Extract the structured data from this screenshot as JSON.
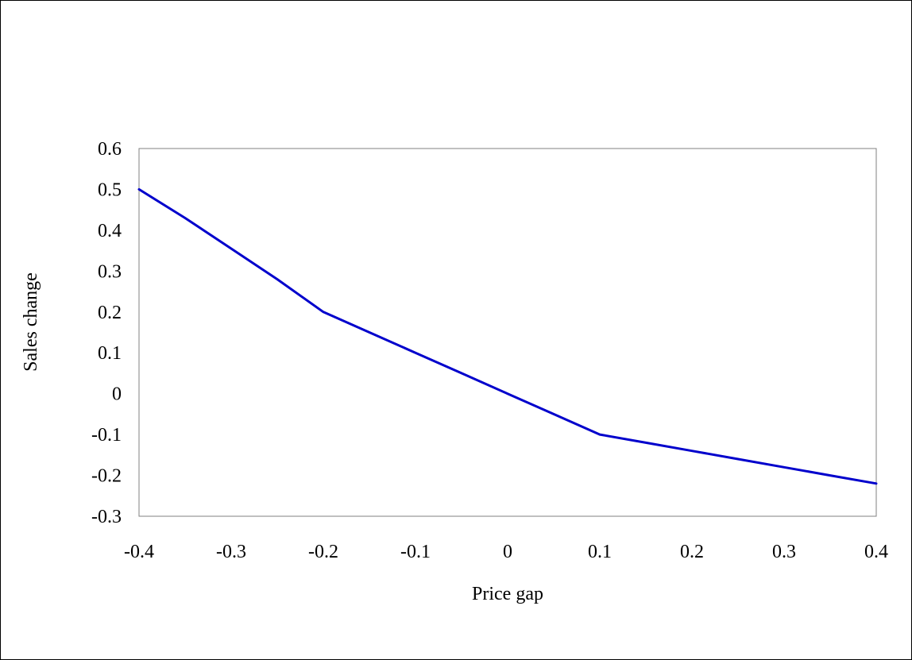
{
  "chart_data": {
    "type": "line",
    "title": "",
    "xlabel": "Price gap",
    "ylabel": "Sales change",
    "xlim": [
      -0.4,
      0.4
    ],
    "ylim": [
      -0.3,
      0.6
    ],
    "x_ticks": [
      "-0.4",
      "-0.3",
      "-0.2",
      "-0.1",
      "0",
      "0.1",
      "0.2",
      "0.3",
      "0.4"
    ],
    "y_ticks": [
      "0.6",
      "0.5",
      "0.4",
      "0.3",
      "0.2",
      "0.1",
      "0",
      "-0.1",
      "-0.2",
      "-0.3"
    ],
    "grid": false,
    "legend": "none",
    "series": [
      {
        "color": "#0000cc",
        "x": [
          -0.4,
          -0.35,
          -0.3,
          -0.25,
          -0.2,
          -0.15,
          -0.1,
          -0.05,
          0,
          0.05,
          0.1,
          0.15,
          0.2,
          0.25,
          0.3,
          0.35,
          0.4
        ],
        "y": [
          0.5,
          0.43,
          0.355,
          0.28,
          0.2,
          0.15,
          0.1,
          0.05,
          0.0,
          -0.05,
          -0.1,
          -0.12,
          -0.14,
          -0.16,
          -0.18,
          -0.2,
          -0.22
        ]
      }
    ]
  }
}
